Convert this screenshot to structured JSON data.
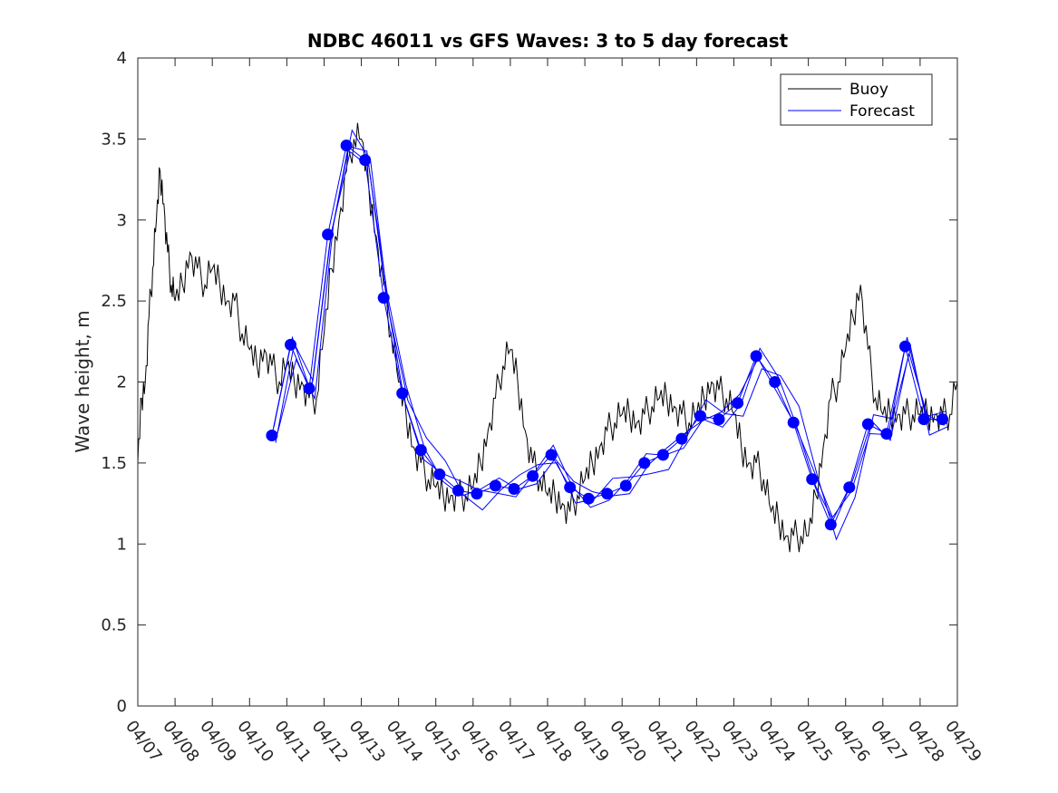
{
  "chart_data": {
    "type": "line",
    "title": "NDBC 46011 vs GFS Waves: 3 to 5 day forecast",
    "xlabel": "",
    "ylabel": "Wave height, m",
    "xlim": [
      0,
      22
    ],
    "ylim": [
      0,
      4
    ],
    "yticks": [
      0,
      0.5,
      1,
      1.5,
      2,
      2.5,
      3,
      3.5,
      4
    ],
    "ytick_labels": [
      "0",
      "0.5",
      "1",
      "1.5",
      "2",
      "2.5",
      "3",
      "3.5",
      "4"
    ],
    "xtick_labels": [
      "04/07",
      "04/08",
      "04/09",
      "04/10",
      "04/11",
      "04/12",
      "04/13",
      "04/14",
      "04/15",
      "04/16",
      "04/17",
      "04/18",
      "04/19",
      "04/20",
      "04/21",
      "04/22",
      "04/23",
      "04/24",
      "04/25",
      "04/26",
      "04/27",
      "04/28",
      "04/29"
    ],
    "legend": {
      "location": "top-right",
      "entries": [
        "Buoy",
        "Forecast"
      ]
    },
    "colors": {
      "buoy": "#000000",
      "forecast": "#0000ff",
      "axis": "#262626"
    },
    "series": [
      {
        "name": "Buoy",
        "x": [
          0,
          0.1,
          0.2,
          0.3,
          0.4,
          0.5,
          0.6,
          0.7,
          0.8,
          0.9,
          1.0,
          1.2,
          1.4,
          1.6,
          1.8,
          2.0,
          2.2,
          2.4,
          2.6,
          2.8,
          3.0,
          3.2,
          3.4,
          3.6,
          3.8,
          4.0,
          4.2,
          4.4,
          4.6,
          4.8,
          5.0,
          5.2,
          5.4,
          5.6,
          5.8,
          6.0,
          6.2,
          6.4,
          6.6,
          6.8,
          7.0,
          7.2,
          7.4,
          7.6,
          7.8,
          8.0,
          8.2,
          8.4,
          8.6,
          8.8,
          9.0,
          9.2,
          9.4,
          9.6,
          9.8,
          10.0,
          10.2,
          10.4,
          10.6,
          10.8,
          11.0,
          11.2,
          11.4,
          11.6,
          11.8,
          12.0,
          12.2,
          12.4,
          12.6,
          12.8,
          13.0,
          13.2,
          13.4,
          13.6,
          13.8,
          14.0,
          14.2,
          14.4,
          14.6,
          14.8,
          15.0,
          15.2,
          15.4,
          15.6,
          15.8,
          16.0,
          16.2,
          16.4,
          16.6,
          16.8,
          17.0,
          17.2,
          17.4,
          17.6,
          17.8,
          18.0,
          18.2,
          18.4,
          18.6,
          18.8,
          19.0,
          19.2,
          19.4,
          19.6,
          19.8,
          20.0,
          20.2,
          20.4,
          20.6,
          20.8,
          21.0,
          21.2,
          21.4,
          21.6,
          21.8,
          22.0
        ],
        "y": [
          1.5,
          1.9,
          2.0,
          2.4,
          2.7,
          3.0,
          3.3,
          3.1,
          2.8,
          2.6,
          2.5,
          2.6,
          2.8,
          2.7,
          2.6,
          2.7,
          2.6,
          2.5,
          2.5,
          2.3,
          2.2,
          2.1,
          2.2,
          2.1,
          2.0,
          2.1,
          2.0,
          2.0,
          1.9,
          1.9,
          2.3,
          2.7,
          3.0,
          3.3,
          3.5,
          3.5,
          3.2,
          2.9,
          2.6,
          2.3,
          2.0,
          1.8,
          1.6,
          1.5,
          1.4,
          1.35,
          1.3,
          1.3,
          1.3,
          1.3,
          1.35,
          1.5,
          1.7,
          1.9,
          2.1,
          2.2,
          2.0,
          1.7,
          1.5,
          1.4,
          1.3,
          1.3,
          1.25,
          1.2,
          1.3,
          1.4,
          1.5,
          1.6,
          1.7,
          1.75,
          1.8,
          1.8,
          1.75,
          1.8,
          1.85,
          1.9,
          1.9,
          1.85,
          1.8,
          1.75,
          1.8,
          1.9,
          2.0,
          1.95,
          1.9,
          1.8,
          1.6,
          1.5,
          1.5,
          1.4,
          1.2,
          1.15,
          1.05,
          1.05,
          1.05,
          1.05,
          1.3,
          1.6,
          1.9,
          2.0,
          2.2,
          2.4,
          2.6,
          2.2,
          1.9,
          1.8,
          1.8,
          1.8,
          1.8,
          1.8,
          1.8,
          1.8,
          1.8,
          1.8,
          1.8,
          2.0
        ]
      },
      {
        "name": "Forecast",
        "x": [
          3.6,
          4.1,
          4.6,
          5.1,
          5.6,
          6.1,
          6.6,
          7.1,
          7.6,
          8.1,
          8.6,
          9.1,
          9.6,
          10.1,
          10.6,
          11.1,
          11.6,
          12.1,
          12.6,
          13.1,
          13.6,
          14.1,
          14.6,
          15.1,
          15.6,
          16.1,
          16.6,
          17.1,
          17.6,
          18.1,
          18.6,
          19.1,
          19.6,
          20.1,
          20.6,
          21.1,
          21.6
        ],
        "y": [
          1.67,
          2.23,
          1.96,
          2.91,
          3.46,
          3.37,
          2.52,
          1.93,
          1.58,
          1.43,
          1.33,
          1.31,
          1.36,
          1.34,
          1.42,
          1.55,
          1.35,
          1.28,
          1.31,
          1.36,
          1.5,
          1.55,
          1.65,
          1.79,
          1.77,
          1.87,
          2.16,
          2.0,
          1.75,
          1.4,
          1.12,
          1.35,
          1.74,
          1.68,
          2.22,
          1.77,
          1.77
        ]
      }
    ]
  }
}
